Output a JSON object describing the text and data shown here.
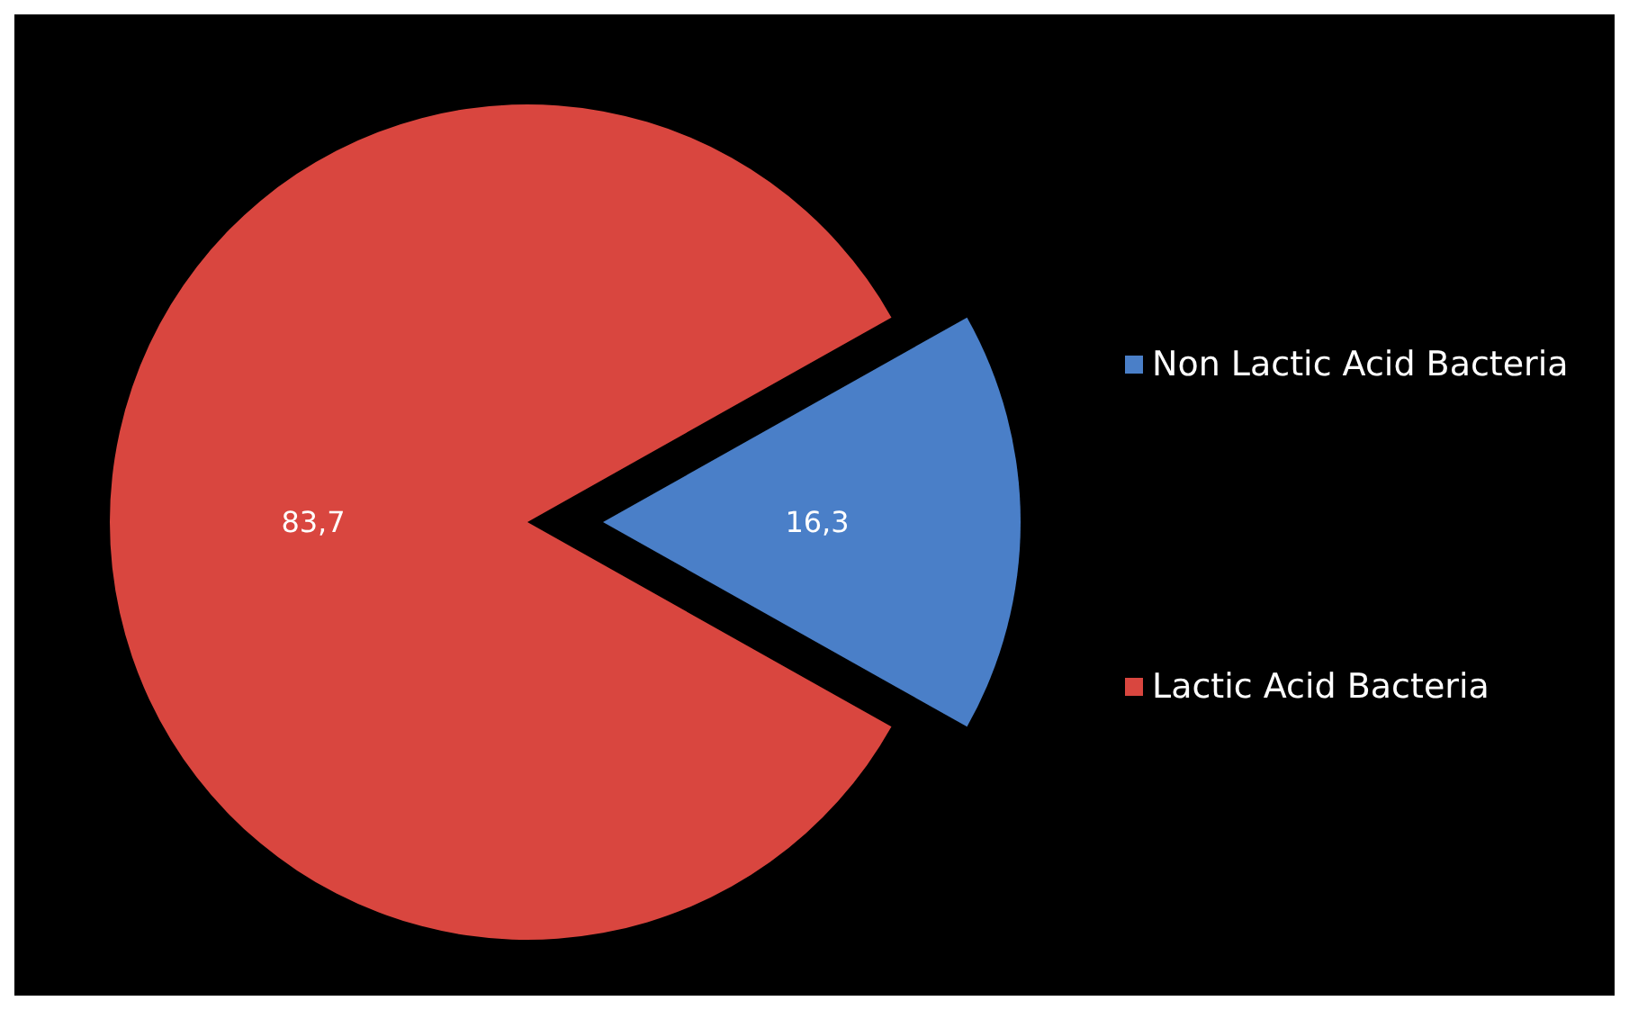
{
  "chart_data": {
    "type": "pie",
    "categories": [
      "Non Lactic Acid Bacteria",
      "Lactic Acid Bacteria"
    ],
    "values": [
      16.3,
      83.7
    ],
    "colors": [
      "#4a7fc8",
      "#d9463f"
    ],
    "value_labels": [
      "16,3",
      "83,7"
    ],
    "legend": "right"
  }
}
